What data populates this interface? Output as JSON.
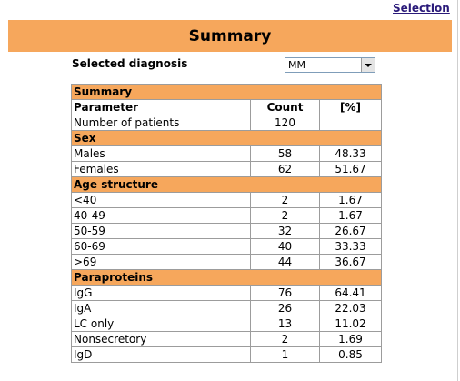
{
  "nav": {
    "selection_link": "Selection"
  },
  "banner": {
    "title": "Summary"
  },
  "diagnosis": {
    "label": "Selected diagnosis",
    "selected": "MM"
  },
  "table": {
    "title": "Summary",
    "headers": [
      "Parameter",
      "Count",
      "[%]"
    ],
    "first_row": {
      "label": "Number of patients",
      "count": "120",
      "pct": ""
    },
    "sections": [
      {
        "title": "Sex",
        "rows": [
          {
            "label": "Males",
            "count": "58",
            "pct": "48.33"
          },
          {
            "label": "Females",
            "count": "62",
            "pct": "51.67"
          }
        ]
      },
      {
        "title": "Age structure",
        "rows": [
          {
            "label": "<40",
            "count": "2",
            "pct": "1.67"
          },
          {
            "label": "40-49",
            "count": "2",
            "pct": "1.67"
          },
          {
            "label": "50-59",
            "count": "32",
            "pct": "26.67"
          },
          {
            "label": "60-69",
            "count": "40",
            "pct": "33.33"
          },
          {
            "label": ">69",
            "count": "44",
            "pct": "36.67"
          }
        ]
      },
      {
        "title": "Paraproteins",
        "rows": [
          {
            "label": "IgG",
            "count": "76",
            "pct": "64.41"
          },
          {
            "label": "IgA",
            "count": "26",
            "pct": "22.03"
          },
          {
            "label": "LC only",
            "count": "13",
            "pct": "11.02"
          },
          {
            "label": "Nonsecretory",
            "count": "2",
            "pct": "1.69"
          },
          {
            "label": "IgD",
            "count": "1",
            "pct": "0.85"
          }
        ]
      }
    ]
  }
}
